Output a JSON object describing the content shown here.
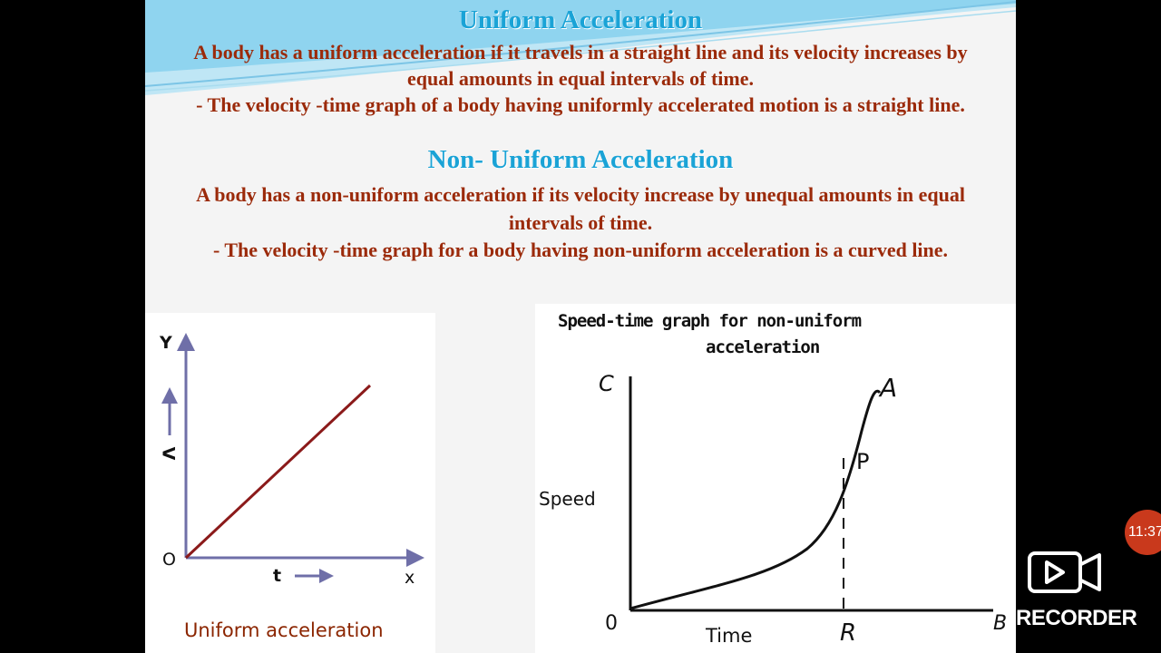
{
  "slide": {
    "uniform_title": "Uniform Acceleration",
    "uniform_text_1": "A body has a uniform acceleration if it travels in a straight line and its velocity increases by equal amounts in equal intervals of time.",
    "uniform_text_2": "- The velocity -time graph of a body having uniformly accelerated motion is a straight line.",
    "nonuniform_title": "Non- Uniform Acceleration",
    "nonuniform_text_1": "A body has a non-uniform acceleration if its velocity increase by unequal amounts in equal intervals of time.",
    "nonuniform_text_2": "- The velocity -time graph for a body having non-uniform acceleration is a curved line."
  },
  "graph_uniform": {
    "y_axis": "Y",
    "v_label": "V",
    "origin": "O",
    "t_label": "t",
    "x_axis": "x",
    "caption": "Uniform acceleration",
    "line_color": "#8b1a1a",
    "axis_color": "#6f6fa8"
  },
  "graph_nonuniform": {
    "title_line1": "Speed-time graph for non-uniform",
    "title_line2": "acceleration",
    "c_label": "C",
    "a_label": "A",
    "p_label": "P",
    "speed_label": "Speed",
    "origin": "0",
    "time_label": "Time",
    "r_label": "R",
    "b_label": "B"
  },
  "overlay": {
    "recorder_label": "RECORDER",
    "timer": "11:37"
  }
}
